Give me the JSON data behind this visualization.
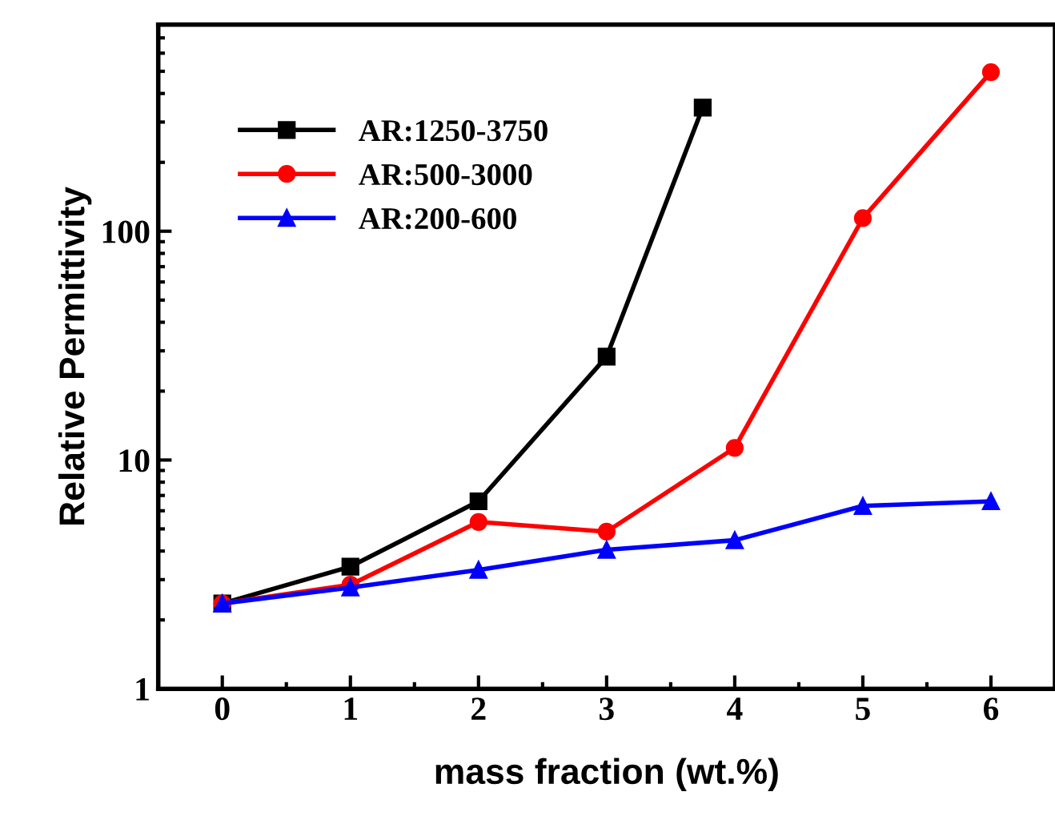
{
  "chart_data": {
    "type": "line",
    "xlabel": "mass fraction (wt.%)",
    "ylabel": "Relative Permittivity",
    "log": "y",
    "xlim": [
      -0.5,
      6.5
    ],
    "xticks": [
      0,
      1,
      2,
      3,
      4,
      5,
      6
    ],
    "ylim": [
      1,
      800
    ],
    "yticks": [
      1,
      10,
      100
    ],
    "legend": "top left",
    "grid": false,
    "line_style": "solid",
    "series": [
      {
        "name": "AR:1250-3750",
        "color": "#000000",
        "marker": "square",
        "x": [
          0,
          1,
          2,
          3,
          3.75
        ],
        "values": [
          2.36,
          3.42,
          6.6,
          28.3,
          347
        ]
      },
      {
        "name": "AR:500-3000",
        "color": "#ff0000",
        "marker": "circle",
        "x": [
          0,
          1,
          2,
          3,
          4,
          5,
          6
        ],
        "values": [
          2.36,
          2.85,
          5.36,
          4.86,
          11.3,
          114,
          496
        ]
      },
      {
        "name": "AR:200-600",
        "color": "#0000ff",
        "marker": "triangle",
        "x": [
          0,
          1,
          2,
          3,
          4,
          5,
          6
        ],
        "values": [
          2.36,
          2.77,
          3.31,
          4.05,
          4.46,
          6.3,
          6.6
        ]
      }
    ]
  }
}
